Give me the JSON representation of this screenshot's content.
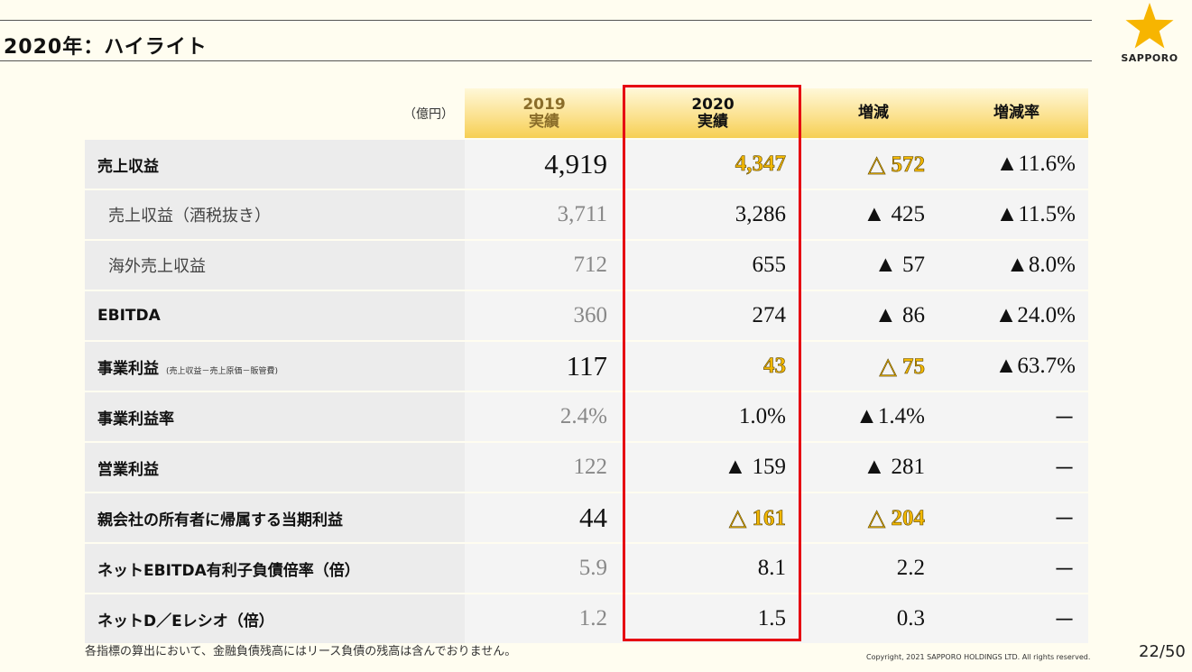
{
  "header": {
    "title": "2020年：ハイライト",
    "logo_text": "SAPPORO"
  },
  "table": {
    "unit": "（億円）",
    "columns": [
      {
        "line1": "2019",
        "line2": "実績"
      },
      {
        "line1": "2020",
        "line2": "実績"
      },
      {
        "line1": "増減",
        "line2": ""
      },
      {
        "line1": "増減率",
        "line2": ""
      }
    ],
    "rows": [
      {
        "label": "売上収益",
        "note": "",
        "v2019": "4,919",
        "v2020": "4,347",
        "diff": "△ 572",
        "rate": "▲11.6%"
      },
      {
        "label": "売上収益（酒税抜き）",
        "note": "",
        "v2019": "3,711",
        "v2020": "3,286",
        "diff": "▲ 425",
        "rate": "▲11.5%"
      },
      {
        "label": "海外売上収益",
        "note": "",
        "v2019": "712",
        "v2020": "655",
        "diff": "▲ 57",
        "rate": "▲8.0%"
      },
      {
        "label": "EBITDA",
        "note": "",
        "v2019": "360",
        "v2020": "274",
        "diff": "▲ 86",
        "rate": "▲24.0%"
      },
      {
        "label": "事業利益",
        "note": "(売上収益－売上原価－販管費)",
        "v2019": "117",
        "v2020": "43",
        "diff": "△ 75",
        "rate": "▲63.7%"
      },
      {
        "label": "事業利益率",
        "note": "",
        "v2019": "2.4%",
        "v2020": "1.0%",
        "diff": "▲1.4%",
        "rate": "－"
      },
      {
        "label": "営業利益",
        "note": "",
        "v2019": "122",
        "v2020": "▲ 159",
        "diff": "▲ 281",
        "rate": "－"
      },
      {
        "label": "親会社の所有者に帰属する当期利益",
        "note": "",
        "v2019": "44",
        "v2020": "△ 161",
        "diff": "△ 204",
        "rate": "－"
      },
      {
        "label": "ネットEBITDA有利子負債倍率（倍）",
        "note": "",
        "v2019": "5.9",
        "v2020": "8.1",
        "diff": "2.2",
        "rate": "－"
      },
      {
        "label": "ネットD／Eレシオ（倍）",
        "note": "",
        "v2019": "1.2",
        "v2020": "1.5",
        "diff": "0.3",
        "rate": "－"
      }
    ]
  },
  "footer": {
    "note": "各指標の算出において、金融負債残高にはリース負債の残高は含んでおりません。",
    "copyright": "Copyright, 2021   SAPPORO HOLDINGS LTD.  All rights reserved.",
    "page": "22/50"
  },
  "colors": {
    "highlight_gold": "#f3b800",
    "highlight_box": "#e60012",
    "star": "#f7b500"
  }
}
